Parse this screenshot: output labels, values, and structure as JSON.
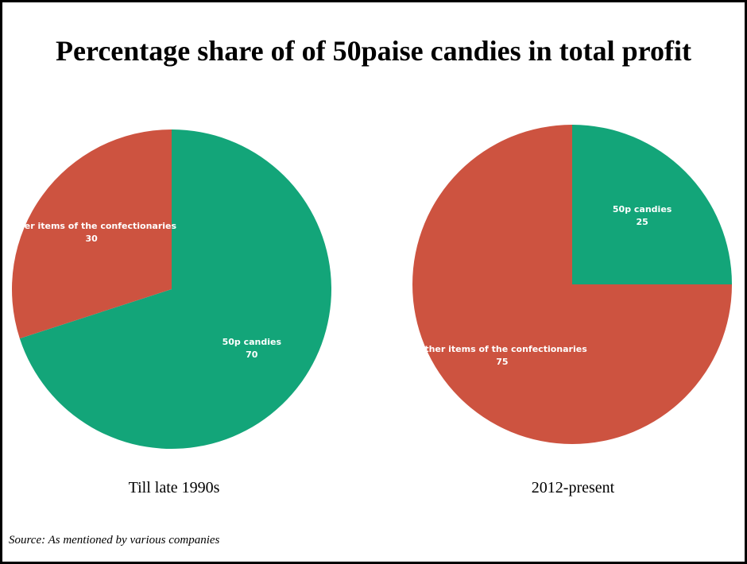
{
  "title": "Percentage share of of 50paise candies in total profit",
  "source": "Source: As mentioned by various companies",
  "colors": {
    "candies": "#13a579",
    "other": "#cd5340",
    "background": "#ffffff",
    "border": "#000000"
  },
  "chart_data": [
    {
      "type": "pie",
      "caption": "Till late 1990s",
      "slices": [
        {
          "label": "50p candies",
          "value": 70,
          "color": "#13a579"
        },
        {
          "label": "Other items of the confectionaries",
          "value": 30,
          "color": "#cd5340"
        }
      ]
    },
    {
      "type": "pie",
      "caption": "2012-present",
      "slices": [
        {
          "label": "50p candies",
          "value": 25,
          "color": "#13a579"
        },
        {
          "label": "Other items of the confectionaries",
          "value": 75,
          "color": "#cd5340"
        }
      ]
    }
  ]
}
